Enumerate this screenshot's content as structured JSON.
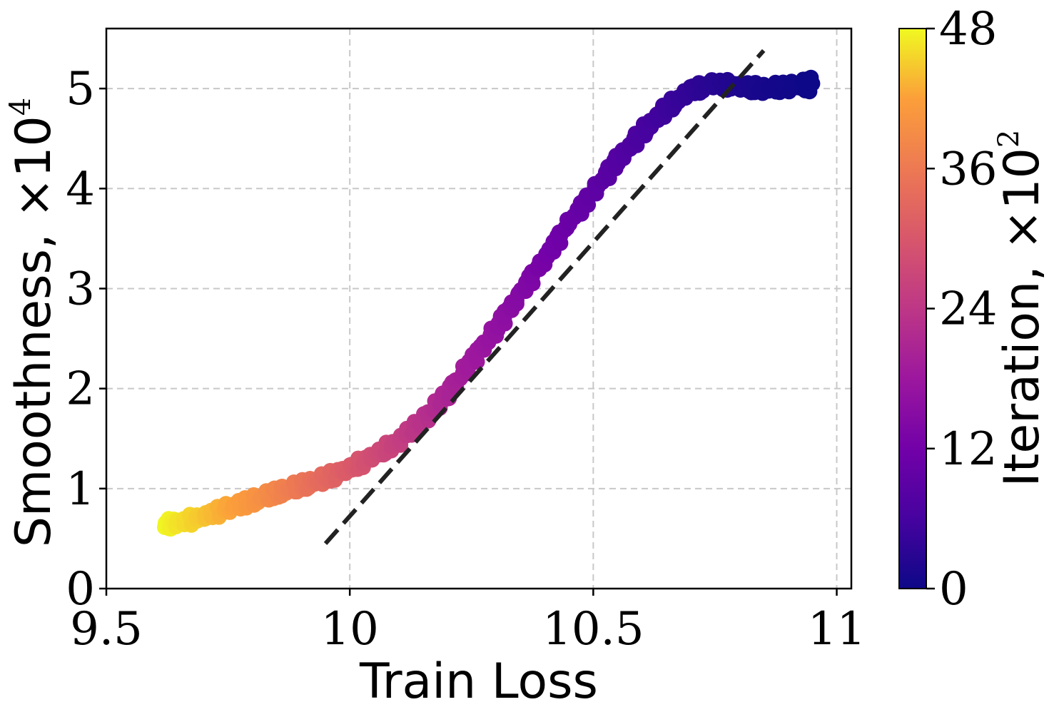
{
  "chart_data": {
    "type": "scatter",
    "xlabel": "Train Loss",
    "ylabel": "Smoothness, ×10",
    "ylabel_exponent": "4",
    "xlim": [
      9.5,
      11.03
    ],
    "ylim": [
      0,
      5.6
    ],
    "xticks": [
      9.5,
      10,
      10.5,
      11
    ],
    "xtick_labels": [
      "9.5",
      "10",
      "10.5",
      "11"
    ],
    "yticks": [
      0,
      1,
      2,
      3,
      4,
      5
    ],
    "ytick_labels": [
      "0",
      "1",
      "2",
      "3",
      "4",
      "5"
    ],
    "grid": true,
    "colormap": "plasma",
    "colorbar": {
      "label": "Iteration, ×10",
      "label_exponent": "2",
      "range": [
        0,
        48
      ],
      "ticks": [
        0,
        12,
        24,
        36,
        48
      ],
      "tick_labels": [
        "0",
        "12",
        "24",
        "36",
        "48"
      ]
    },
    "series": [
      {
        "x": [
          9.62,
          9.65,
          9.7,
          9.75,
          9.8,
          9.85,
          9.9,
          9.95,
          10.0,
          10.05,
          10.1,
          10.15,
          10.2,
          10.25,
          10.3,
          10.35,
          10.4,
          10.45,
          10.5,
          10.55,
          10.6,
          10.65,
          10.7,
          10.75,
          10.8,
          10.85,
          10.9,
          10.95
        ],
        "y": [
          0.64,
          0.66,
          0.72,
          0.8,
          0.88,
          0.96,
          1.03,
          1.1,
          1.2,
          1.32,
          1.48,
          1.68,
          1.95,
          2.27,
          2.6,
          2.95,
          3.3,
          3.65,
          3.97,
          4.28,
          4.56,
          4.8,
          4.98,
          5.05,
          5.02,
          5.0,
          5.02,
          5.05
        ],
        "iteration": [
          48,
          46.5,
          44.5,
          42.5,
          40.5,
          38,
          35.5,
          33,
          30.5,
          28,
          25.5,
          23,
          20.5,
          18.5,
          16.5,
          14.5,
          12.5,
          11,
          9.5,
          8,
          6.5,
          5,
          3.8,
          2.7,
          1.8,
          1.0,
          0.5,
          0
        ]
      }
    ],
    "fit_line": {
      "x": [
        9.95,
        10.85
      ],
      "y": [
        0.45,
        5.38
      ]
    }
  }
}
